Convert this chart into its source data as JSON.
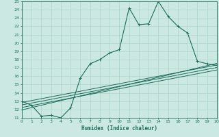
{
  "xlabel": "Humidex (Indice chaleur)",
  "ylabel": "",
  "bg_color": "#cce8e2",
  "grid_color": "#aad4cc",
  "line_color": "#1a6b5a",
  "xlim": [
    0,
    20
  ],
  "ylim": [
    11,
    25
  ],
  "xticks": [
    0,
    1,
    2,
    3,
    4,
    5,
    6,
    7,
    8,
    9,
    10,
    11,
    12,
    13,
    14,
    15,
    16,
    17,
    18,
    19,
    20
  ],
  "yticks": [
    11,
    12,
    13,
    14,
    15,
    16,
    17,
    18,
    19,
    20,
    21,
    22,
    23,
    24,
    25
  ],
  "main_line": [
    [
      0,
      13.0
    ],
    [
      1,
      12.5
    ],
    [
      2,
      11.2
    ],
    [
      3,
      11.3
    ],
    [
      4,
      11.0
    ],
    [
      5,
      12.2
    ],
    [
      6,
      15.8
    ],
    [
      7,
      17.5
    ],
    [
      8,
      18.0
    ],
    [
      9,
      18.8
    ],
    [
      10,
      19.2
    ],
    [
      11,
      24.2
    ],
    [
      12,
      22.2
    ],
    [
      13,
      22.3
    ],
    [
      14,
      25.0
    ],
    [
      15,
      23.2
    ],
    [
      16,
      22.0
    ],
    [
      17,
      21.2
    ],
    [
      18,
      17.8
    ],
    [
      19,
      17.5
    ],
    [
      20,
      17.3
    ]
  ],
  "reg_lines": [
    [
      [
        0,
        12.85
      ],
      [
        20,
        17.35
      ]
    ],
    [
      [
        0,
        12.55
      ],
      [
        20,
        17.05
      ]
    ],
    [
      [
        0,
        12.25
      ],
      [
        20,
        16.75
      ]
    ],
    [
      [
        0,
        11.95
      ],
      [
        20,
        17.55
      ]
    ]
  ]
}
